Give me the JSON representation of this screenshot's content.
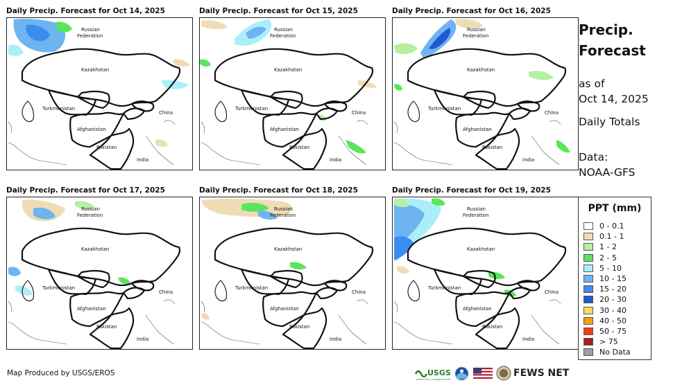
{
  "panels": [
    {
      "title": "Daily Precip. Forecast for Oct 14, 2025",
      "key": "d1"
    },
    {
      "title": "Daily Precip. Forecast for Oct 15, 2025",
      "key": "d2"
    },
    {
      "title": "Daily Precip. Forecast for Oct 16, 2025",
      "key": "d3"
    },
    {
      "title": "Daily Precip. Forecast for Oct 17, 2025",
      "key": "d4"
    },
    {
      "title": "Daily Precip. Forecast for Oct 18, 2025",
      "key": "d5"
    },
    {
      "title": "Daily Precip. Forecast for Oct 19, 2025",
      "key": "d6"
    }
  ],
  "map_labels": {
    "russia_line1": "Russian",
    "russia_line2": "Federation",
    "kazakhstan": "Kazakhstan",
    "turkmenistan": "Turkmenistan",
    "china": "China",
    "afghanistan": "Afghanistan",
    "pakistan": "Pakistan",
    "india": "India"
  },
  "side": {
    "title_line1": "Precip.",
    "title_line2": "Forecast",
    "asof_line1": "as of",
    "asof_line2": "Oct 14, 2025",
    "totals": "Daily Totals",
    "data_line1": "Data:",
    "data_line2": "NOAA-GFS"
  },
  "legend": {
    "title": "PPT (mm)",
    "items": [
      {
        "label": "0 - 0.1",
        "color": "#ffffff"
      },
      {
        "label": "0.1 - 1",
        "color": "#f0dcb4"
      },
      {
        "label": "1 - 2",
        "color": "#b4f0a0"
      },
      {
        "label": "2 - 5",
        "color": "#5ae65a"
      },
      {
        "label": "5 - 10",
        "color": "#aaeefa"
      },
      {
        "label": "10 - 15",
        "color": "#6eb4f0"
      },
      {
        "label": "15 - 20",
        "color": "#3c8cf0"
      },
      {
        "label": "20 - 30",
        "color": "#1e5ad2"
      },
      {
        "label": "30 - 40",
        "color": "#fadc64"
      },
      {
        "label": "40 - 50",
        "color": "#faa000"
      },
      {
        "label": "50 - 75",
        "color": "#f03c14"
      },
      {
        "label": "> 75",
        "color": "#aa1e1e"
      },
      {
        "label": "No Data",
        "color": "#a0a0a0"
      }
    ]
  },
  "footer": {
    "credit": "Map Produced by USGS/EROS",
    "usgs": "USGS",
    "usgs_tagline": "science for a changing world",
    "fews": "FEWS NET"
  }
}
